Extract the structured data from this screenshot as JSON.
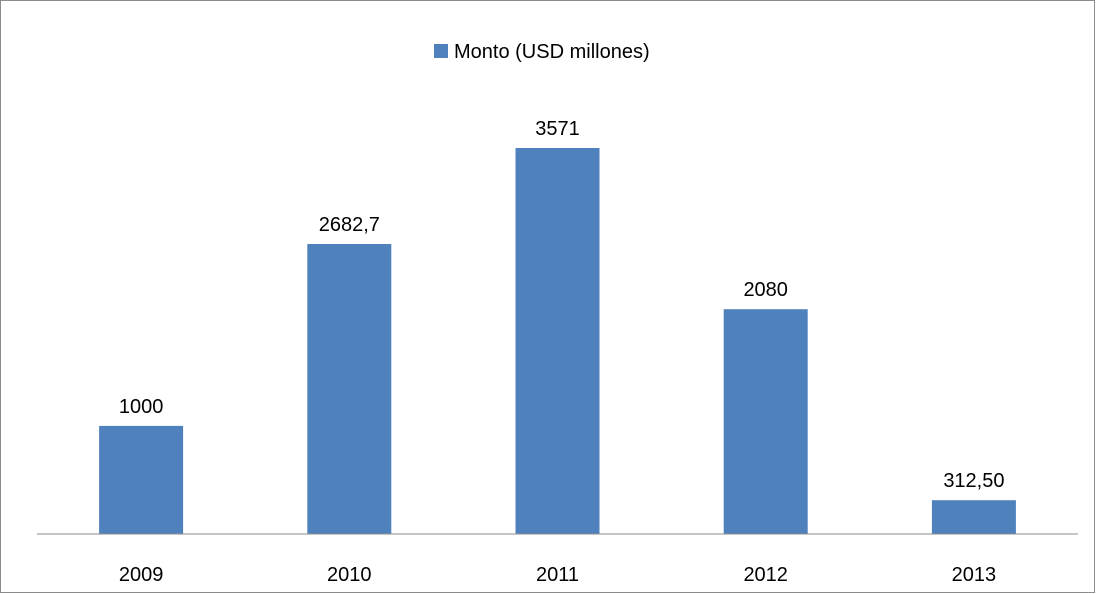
{
  "chart_data": {
    "type": "bar",
    "categories": [
      "2009",
      "2010",
      "2011",
      "2012",
      "2013"
    ],
    "series": [
      {
        "name": "Monto (USD millones)",
        "values": [
          1000,
          2682.7,
          3571,
          2080,
          312.5
        ],
        "data_labels": [
          "1000",
          "2682,7",
          "3571",
          "2080",
          "312,50"
        ],
        "color": "#4f81bd"
      }
    ],
    "title": "",
    "xlabel": "",
    "ylabel": "",
    "ylim": [
      0,
      4000
    ],
    "grid": false,
    "legend_position": "top"
  }
}
